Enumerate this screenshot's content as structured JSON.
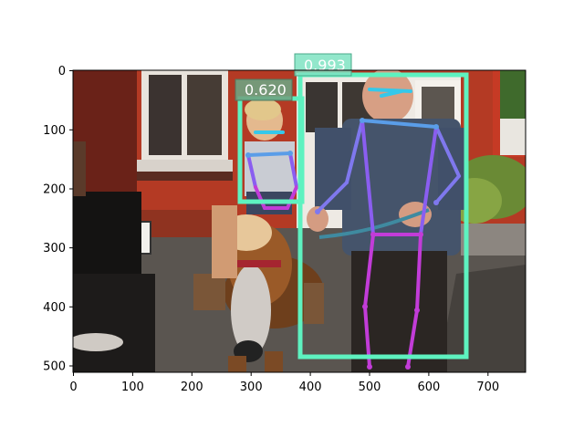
{
  "figure": {
    "x_ticks": [
      "0",
      "100",
      "200",
      "300",
      "400",
      "500",
      "600",
      "700"
    ],
    "y_ticks": [
      "0",
      "100",
      "200",
      "300",
      "400",
      "500"
    ]
  },
  "detections": [
    {
      "score": "0.993",
      "subject": "adult man holding leash",
      "color": "#5ef2c0",
      "label_bg": "#7fe3c2"
    },
    {
      "score": "0.620",
      "subject": "child riding pony",
      "color": "#5ef2c0",
      "label_bg": "#6fa382"
    }
  ],
  "skeleton_colors": {
    "head": "#35c8ea",
    "shoulders": "#5a9de8",
    "torso": "#8a5ef0",
    "legs": "#c23cd8",
    "arms": "#7f78ee"
  }
}
